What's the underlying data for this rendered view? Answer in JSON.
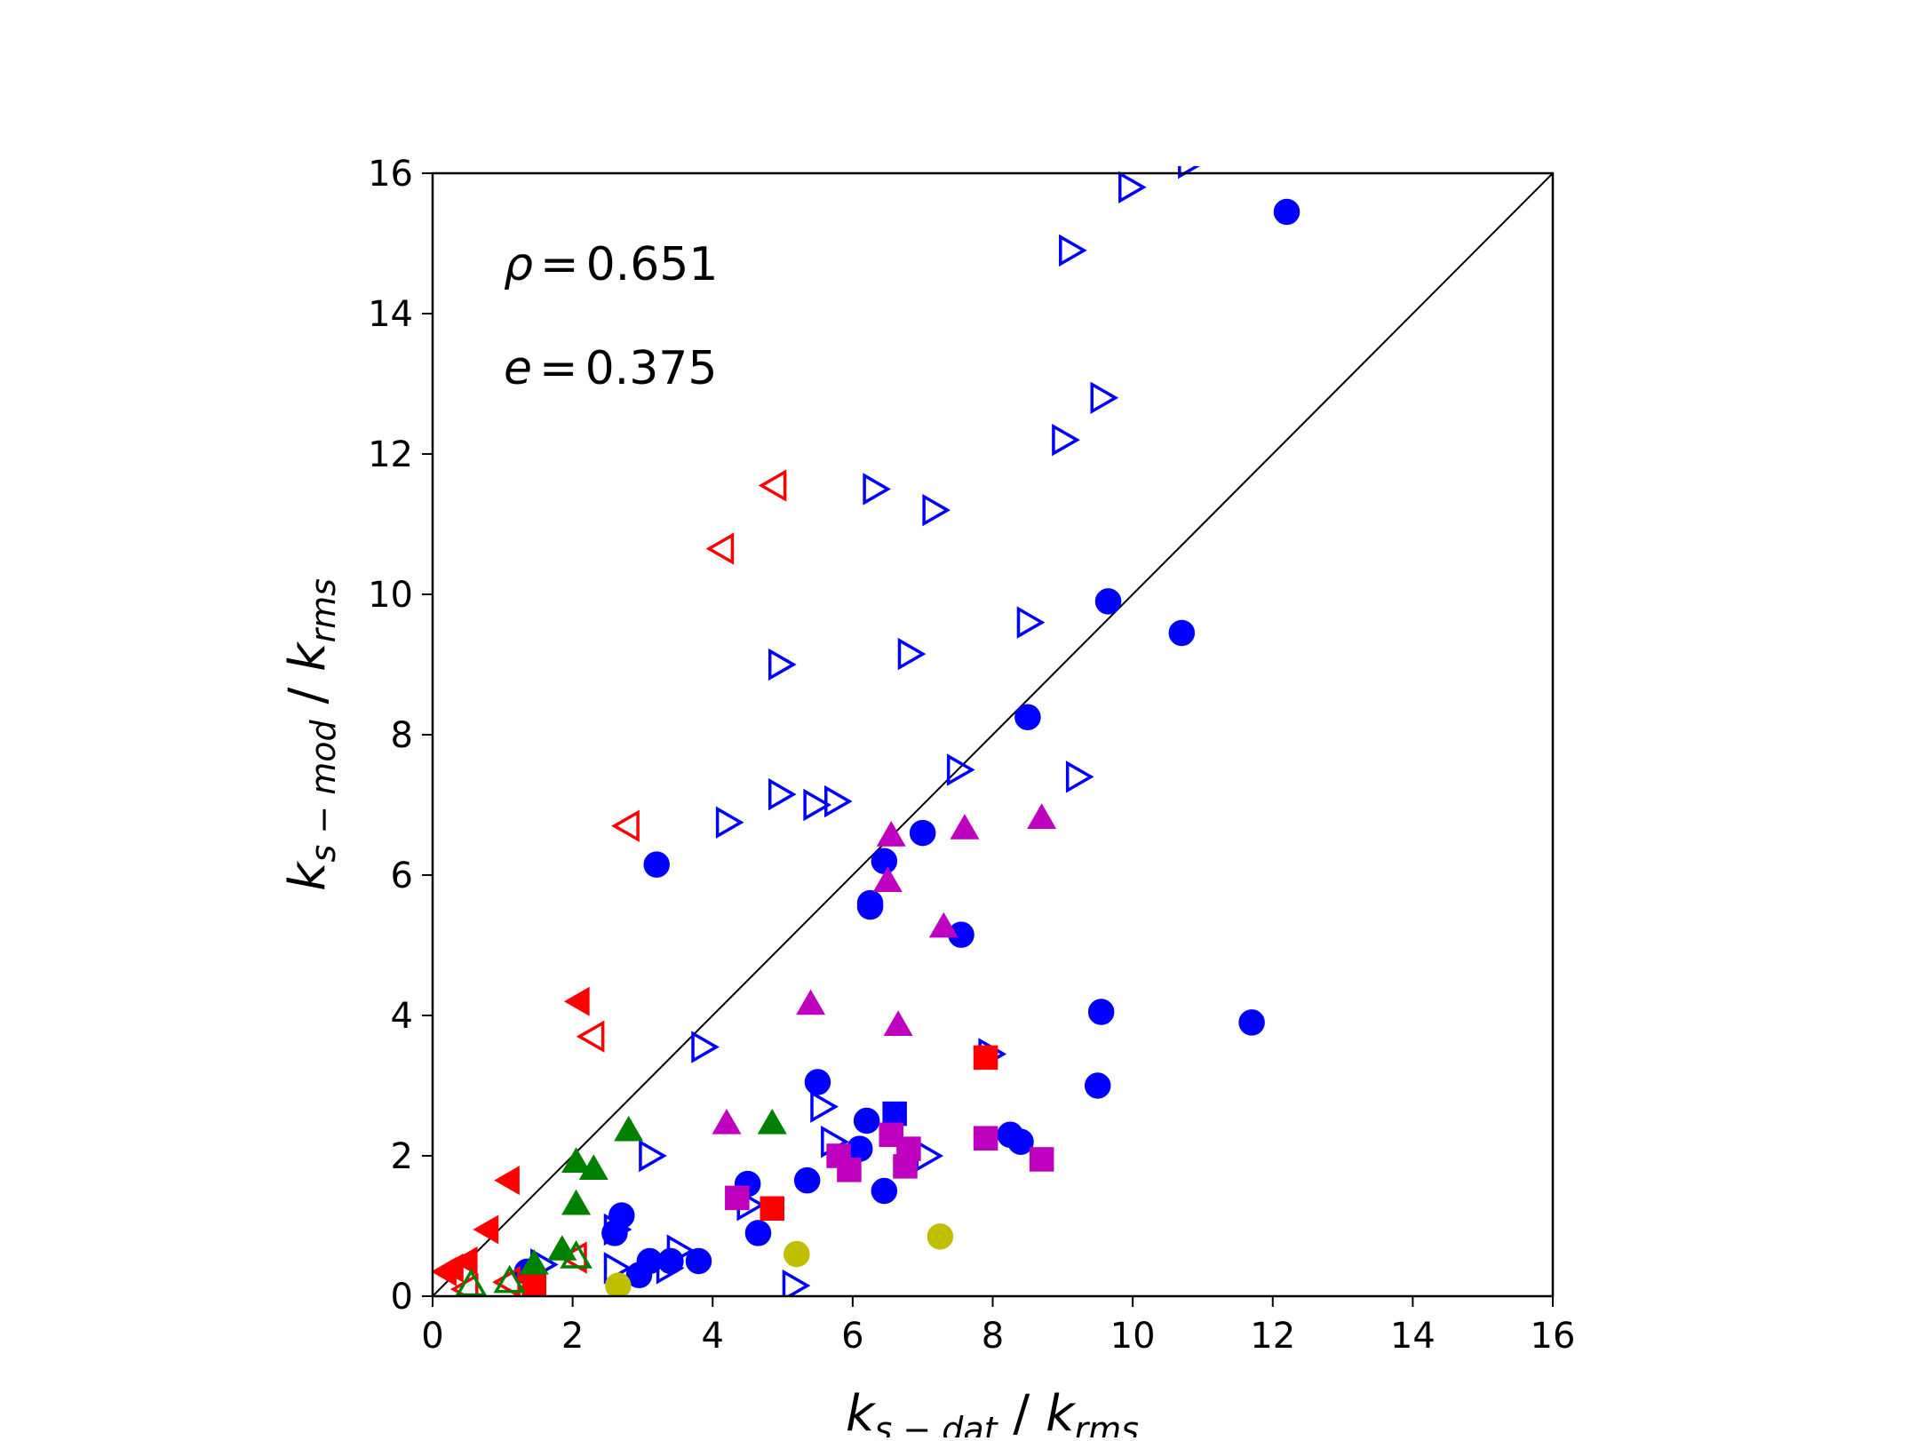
{
  "chart_data": {
    "type": "scatter",
    "title": "",
    "xlabel": "k_s-dat / k_rms",
    "ylabel": "k_s-mod / k_rms",
    "xlabel_parts": {
      "k": "k",
      "sub": "s − dat",
      "sep": " / ",
      "k2": "k",
      "sub2": "rms"
    },
    "ylabel_parts": {
      "k": "k",
      "sub": "s − mod",
      "sep": " / ",
      "k2": "k",
      "sub2": "rms"
    },
    "xlim": [
      0,
      16
    ],
    "ylim": [
      0,
      16
    ],
    "xticks": [
      "0",
      "2",
      "4",
      "6",
      "8",
      "10",
      "12",
      "14",
      "16"
    ],
    "yticks": [
      "0",
      "2",
      "4",
      "6",
      "8",
      "10",
      "12",
      "14",
      "16"
    ],
    "grid": false,
    "reference_line": "y = x",
    "annotations": {
      "rho": {
        "symbol": "ρ",
        "value": "0.651"
      },
      "e": {
        "symbol": "e",
        "value": "0.375"
      }
    },
    "series": [
      {
        "name": "blue-circle",
        "marker": "circle",
        "filled": true,
        "color": "#0000ff",
        "points": [
          [
            12.2,
            15.45
          ],
          [
            9.65,
            9.9
          ],
          [
            10.7,
            9.45
          ],
          [
            8.5,
            8.25
          ],
          [
            7.0,
            6.6
          ],
          [
            6.45,
            6.2
          ],
          [
            6.25,
            5.6
          ],
          [
            6.25,
            5.55
          ],
          [
            7.55,
            5.15
          ],
          [
            3.2,
            6.15
          ],
          [
            9.55,
            4.05
          ],
          [
            11.7,
            3.9
          ],
          [
            9.5,
            3.0
          ],
          [
            5.5,
            3.05
          ],
          [
            6.2,
            2.5
          ],
          [
            6.1,
            2.1
          ],
          [
            8.25,
            2.3
          ],
          [
            8.4,
            2.2
          ],
          [
            5.35,
            1.65
          ],
          [
            4.5,
            1.6
          ],
          [
            6.45,
            1.5
          ],
          [
            4.65,
            0.9
          ],
          [
            2.7,
            1.15
          ],
          [
            2.6,
            0.9
          ],
          [
            3.1,
            0.5
          ],
          [
            3.4,
            0.5
          ],
          [
            3.8,
            0.5
          ],
          [
            2.95,
            0.3
          ],
          [
            1.35,
            0.35
          ]
        ]
      },
      {
        "name": "blue-triangle-right",
        "marker": "triangle-right",
        "filled": false,
        "color": "#0000ff",
        "points": [
          [
            10.8,
            16.15
          ],
          [
            9.95,
            15.8
          ],
          [
            9.1,
            14.9
          ],
          [
            9.55,
            12.8
          ],
          [
            9.0,
            12.2
          ],
          [
            6.3,
            11.5
          ],
          [
            7.15,
            11.2
          ],
          [
            8.5,
            9.6
          ],
          [
            6.8,
            9.15
          ],
          [
            4.95,
            9.0
          ],
          [
            7.5,
            7.5
          ],
          [
            9.2,
            7.4
          ],
          [
            4.95,
            7.15
          ],
          [
            5.45,
            7.0
          ],
          [
            5.75,
            7.05
          ],
          [
            4.2,
            6.75
          ],
          [
            3.85,
            3.55
          ],
          [
            7.95,
            3.45
          ],
          [
            5.55,
            2.7
          ],
          [
            5.7,
            2.2
          ],
          [
            3.1,
            2.0
          ],
          [
            7.05,
            2.0
          ],
          [
            4.5,
            1.3
          ],
          [
            5.15,
            0.15
          ],
          [
            2.6,
            0.95
          ],
          [
            2.6,
            0.4
          ],
          [
            3.5,
            0.65
          ],
          [
            3.35,
            0.4
          ],
          [
            1.55,
            0.45
          ]
        ]
      },
      {
        "name": "blue-square",
        "marker": "square",
        "filled": true,
        "color": "#0000ff",
        "points": [
          [
            6.6,
            2.6
          ]
        ]
      },
      {
        "name": "red-triangle-left-open",
        "marker": "triangle-left",
        "filled": false,
        "color": "#ff0000",
        "points": [
          [
            4.9,
            11.55
          ],
          [
            4.15,
            10.65
          ],
          [
            2.8,
            6.7
          ],
          [
            2.3,
            3.7
          ],
          [
            2.05,
            0.55
          ],
          [
            1.1,
            0.2
          ],
          [
            0.5,
            0.1
          ]
        ]
      },
      {
        "name": "red-triangle-left-filled",
        "marker": "triangle-left",
        "filled": true,
        "color": "#ff0000",
        "points": [
          [
            2.1,
            4.2
          ],
          [
            1.1,
            1.65
          ],
          [
            0.8,
            0.95
          ],
          [
            0.5,
            0.5
          ],
          [
            0.3,
            0.4
          ],
          [
            0.2,
            0.35
          ],
          [
            1.4,
            0.25
          ]
        ]
      },
      {
        "name": "red-square",
        "marker": "square",
        "filled": true,
        "color": "#ff0000",
        "points": [
          [
            7.9,
            3.4
          ],
          [
            4.85,
            1.25
          ],
          [
            1.45,
            0.15
          ]
        ]
      },
      {
        "name": "magenta-triangle-up",
        "marker": "triangle-up",
        "filled": true,
        "color": "#bf00bf",
        "points": [
          [
            6.55,
            6.55
          ],
          [
            7.6,
            6.65
          ],
          [
            8.7,
            6.8
          ],
          [
            6.5,
            5.9
          ],
          [
            7.3,
            5.25
          ],
          [
            5.4,
            4.15
          ],
          [
            6.65,
            3.85
          ],
          [
            4.2,
            2.45
          ]
        ]
      },
      {
        "name": "magenta-square",
        "marker": "square",
        "filled": true,
        "color": "#bf00bf",
        "points": [
          [
            6.55,
            2.3
          ],
          [
            6.8,
            2.1
          ],
          [
            5.8,
            2.0
          ],
          [
            5.95,
            1.8
          ],
          [
            6.75,
            1.85
          ],
          [
            7.9,
            2.25
          ],
          [
            8.7,
            1.95
          ],
          [
            4.35,
            1.4
          ]
        ]
      },
      {
        "name": "green-triangle-up-filled",
        "marker": "triangle-up",
        "filled": true,
        "color": "#008000",
        "points": [
          [
            2.8,
            2.35
          ],
          [
            4.85,
            2.45
          ],
          [
            2.05,
            1.9
          ],
          [
            2.3,
            1.8
          ],
          [
            2.05,
            1.3
          ],
          [
            1.85,
            0.65
          ],
          [
            1.45,
            0.45
          ]
        ]
      },
      {
        "name": "green-triangle-up-open",
        "marker": "triangle-up",
        "filled": false,
        "color": "#008000",
        "points": [
          [
            2.05,
            0.55
          ],
          [
            1.1,
            0.2
          ],
          [
            0.55,
            0.15
          ]
        ]
      },
      {
        "name": "olive-circle",
        "marker": "circle",
        "filled": true,
        "color": "#bfbf00",
        "points": [
          [
            5.2,
            0.6
          ],
          [
            7.25,
            0.85
          ],
          [
            2.65,
            0.15
          ]
        ]
      }
    ]
  }
}
